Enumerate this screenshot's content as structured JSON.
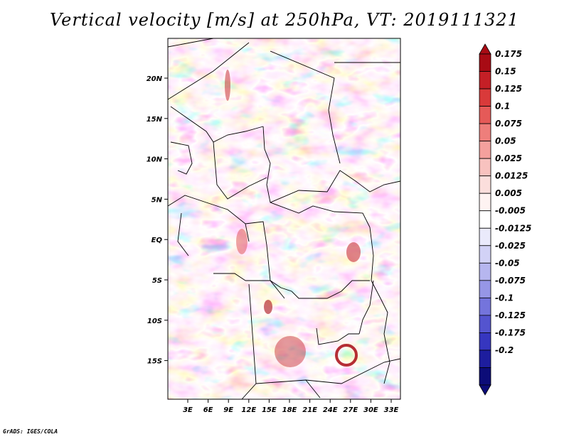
{
  "title": "Vertical velocity [m/s] at 250hPa, VT: 2019111321",
  "credit": "GrADS: IGES/COLA",
  "map": {
    "lon_ticks": [
      "3E",
      "6E",
      "9E",
      "12E",
      "15E",
      "18E",
      "21E",
      "24E",
      "27E",
      "30E",
      "33E"
    ],
    "lat_ticks": [
      "20N",
      "15N",
      "10N",
      "5N",
      "EQ",
      "5S",
      "10S",
      "15S"
    ]
  },
  "colorbar": {
    "labels": [
      "0.175",
      "0.15",
      "0.125",
      "0.1",
      "0.075",
      "0.05",
      "0.025",
      "0.0125",
      "0.005",
      "-0.005",
      "-0.0125",
      "-0.025",
      "-0.05",
      "-0.075",
      "-0.1",
      "-0.125",
      "-0.175",
      "-0.2"
    ],
    "colors": [
      "#a80b14",
      "#c41f26",
      "#d93a3a",
      "#e55a58",
      "#ee7e7b",
      "#f4a09d",
      "#f8c2bf",
      "#fbdedc",
      "#fef3f2",
      "#ffffff",
      "#eaeafb",
      "#d2d2f6",
      "#b6b6ef",
      "#9696e6",
      "#7474dc",
      "#5454cf",
      "#3636bf",
      "#1d1d9e",
      "#0c0c78"
    ]
  }
}
